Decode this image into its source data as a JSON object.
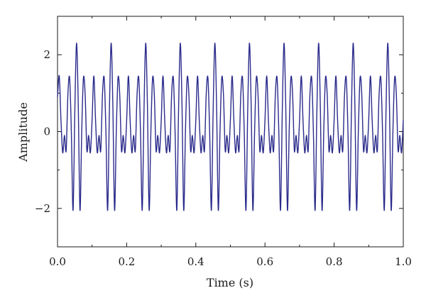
{
  "chart_data": {
    "type": "line",
    "title": "",
    "xlabel": "Time (s)",
    "ylabel": "Amplitude",
    "xlim": [
      0.0,
      1.0
    ],
    "ylim": [
      -3,
      3
    ],
    "x_ticks": [
      0.0,
      0.2,
      0.4,
      0.6,
      0.8,
      1.0
    ],
    "x_tick_labels": [
      "0.0",
      "0.2",
      "0.4",
      "0.6",
      "0.8",
      "1.0"
    ],
    "y_ticks": [
      -2,
      0,
      2
    ],
    "y_tick_labels": [
      "−2",
      "0",
      "2"
    ],
    "grid": false,
    "legend": "none",
    "colors": {
      "line": "#2b2b8c",
      "axes": "#1a1a1a"
    },
    "series": [
      {
        "x": [
          0.0,
          0.005,
          0.01,
          0.015,
          0.02,
          0.025,
          0.03,
          0.035,
          0.04,
          0.045,
          0.05,
          0.055,
          0.06,
          0.065,
          0.07,
          0.075,
          0.08,
          0.085,
          0.09,
          0.095,
          0.1
        ],
        "y": [
          0.9,
          1.45,
          0.3,
          -0.55,
          -0.1,
          -0.5,
          0.95,
          1.4,
          0.0,
          -2.05,
          0.5,
          2.3,
          0.7,
          -2.05,
          0.0,
          1.4,
          0.95,
          -0.5,
          -0.1,
          -0.55,
          0.3
        ],
        "period": 0.1
      }
    ]
  }
}
